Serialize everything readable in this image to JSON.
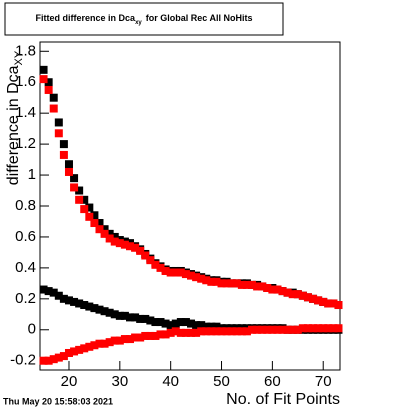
{
  "chart_data": {
    "type": "scatter",
    "title": [
      "Fitted difference in Dca",
      "xy",
      "for Global Rec All NoHits"
    ],
    "ylabel": [
      "difference in Dca",
      "XY"
    ],
    "xlabel": "No. of Fit Points",
    "timestamp": "Thu May 20 15:58:03 2021",
    "x": [
      15,
      16,
      17,
      18,
      19,
      20,
      21,
      22,
      23,
      24,
      25,
      26,
      27,
      28,
      29,
      30,
      31,
      32,
      33,
      34,
      35,
      36,
      37,
      38,
      39,
      40,
      41,
      42,
      43,
      44,
      45,
      46,
      47,
      48,
      49,
      50,
      51,
      52,
      53,
      54,
      55,
      56,
      57,
      58,
      59,
      60,
      61,
      62,
      63,
      64,
      65,
      66,
      67,
      68,
      69,
      70,
      71,
      72,
      73
    ],
    "series": [
      {
        "color": "#000000",
        "values": [
          1.68,
          1.6,
          1.5,
          1.34,
          1.2,
          1.07,
          0.98,
          0.9,
          0.84,
          0.79,
          0.74,
          0.69,
          0.65,
          0.62,
          0.6,
          0.58,
          0.57,
          0.56,
          0.54,
          0.52,
          0.49,
          0.46,
          0.43,
          0.41,
          0.39,
          0.38,
          0.38,
          0.38,
          0.37,
          0.36,
          0.35,
          0.34,
          0.33,
          0.32,
          0.32,
          0.31,
          0.31,
          0.3,
          0.3,
          0.3,
          0.3,
          0.29,
          0.29,
          0.28,
          0.27,
          0.27,
          0.26,
          0.25,
          0.24,
          0.24,
          0.23,
          0.22,
          0.21,
          0.2,
          0.19,
          0.18,
          0.17,
          0.17,
          0.16
        ]
      },
      {
        "color": "#ff0000",
        "values": [
          1.62,
          1.55,
          1.43,
          1.27,
          1.13,
          1.02,
          0.92,
          0.84,
          0.78,
          0.73,
          0.69,
          0.65,
          0.62,
          0.59,
          0.57,
          0.56,
          0.55,
          0.54,
          0.53,
          0.51,
          0.48,
          0.45,
          0.42,
          0.4,
          0.38,
          0.37,
          0.37,
          0.37,
          0.36,
          0.35,
          0.34,
          0.33,
          0.32,
          0.31,
          0.31,
          0.3,
          0.3,
          0.3,
          0.3,
          0.29,
          0.29,
          0.29,
          0.28,
          0.28,
          0.27,
          0.26,
          0.26,
          0.25,
          0.24,
          0.23,
          0.23,
          0.22,
          0.21,
          0.2,
          0.19,
          0.18,
          0.17,
          0.17,
          0.16
        ]
      },
      {
        "color": "#000000",
        "values": [
          0.26,
          0.25,
          0.24,
          0.22,
          0.2,
          0.19,
          0.18,
          0.17,
          0.16,
          0.15,
          0.14,
          0.13,
          0.12,
          0.11,
          0.1,
          0.09,
          0.09,
          0.08,
          0.08,
          0.07,
          0.07,
          0.06,
          0.05,
          0.05,
          0.04,
          0.03,
          0.04,
          0.05,
          0.05,
          0.04,
          0.03,
          0.03,
          0.02,
          0.02,
          0.02,
          0.01,
          0.01,
          0.01,
          0.01,
          0.01,
          0.01,
          0.01,
          0.01,
          0.01,
          0.01,
          0.01,
          0.01,
          0.01,
          0.0,
          0.0,
          0.0,
          0.0,
          0.0,
          0.0,
          0.0,
          0.0,
          0.0,
          0.0,
          0.0
        ]
      },
      {
        "color": "#ff0000",
        "values": [
          -0.2,
          -0.2,
          -0.19,
          -0.18,
          -0.17,
          -0.15,
          -0.14,
          -0.13,
          -0.12,
          -0.11,
          -0.1,
          -0.09,
          -0.09,
          -0.08,
          -0.07,
          -0.07,
          -0.06,
          -0.06,
          -0.05,
          -0.05,
          -0.04,
          -0.04,
          -0.04,
          -0.03,
          -0.03,
          -0.02,
          -0.01,
          -0.02,
          -0.02,
          -0.02,
          -0.02,
          -0.01,
          -0.01,
          -0.01,
          -0.01,
          -0.01,
          -0.01,
          -0.01,
          -0.01,
          -0.01,
          -0.01,
          0.0,
          0.0,
          0.0,
          0.0,
          0.0,
          0.0,
          0.0,
          0.0,
          0.0,
          0.0,
          0.01,
          0.01,
          0.01,
          0.01,
          0.01,
          0.01,
          0.01,
          0.01
        ]
      }
    ],
    "xlim": [
      14.3,
      73.3
    ],
    "xticks": [
      20,
      30,
      40,
      50,
      60,
      70
    ],
    "ylim": [
      -0.26,
      1.86
    ],
    "yticks": [
      -0.2,
      0,
      0.2,
      0.4,
      0.6,
      0.8,
      1,
      1.2,
      1.4,
      1.6,
      1.8
    ]
  }
}
